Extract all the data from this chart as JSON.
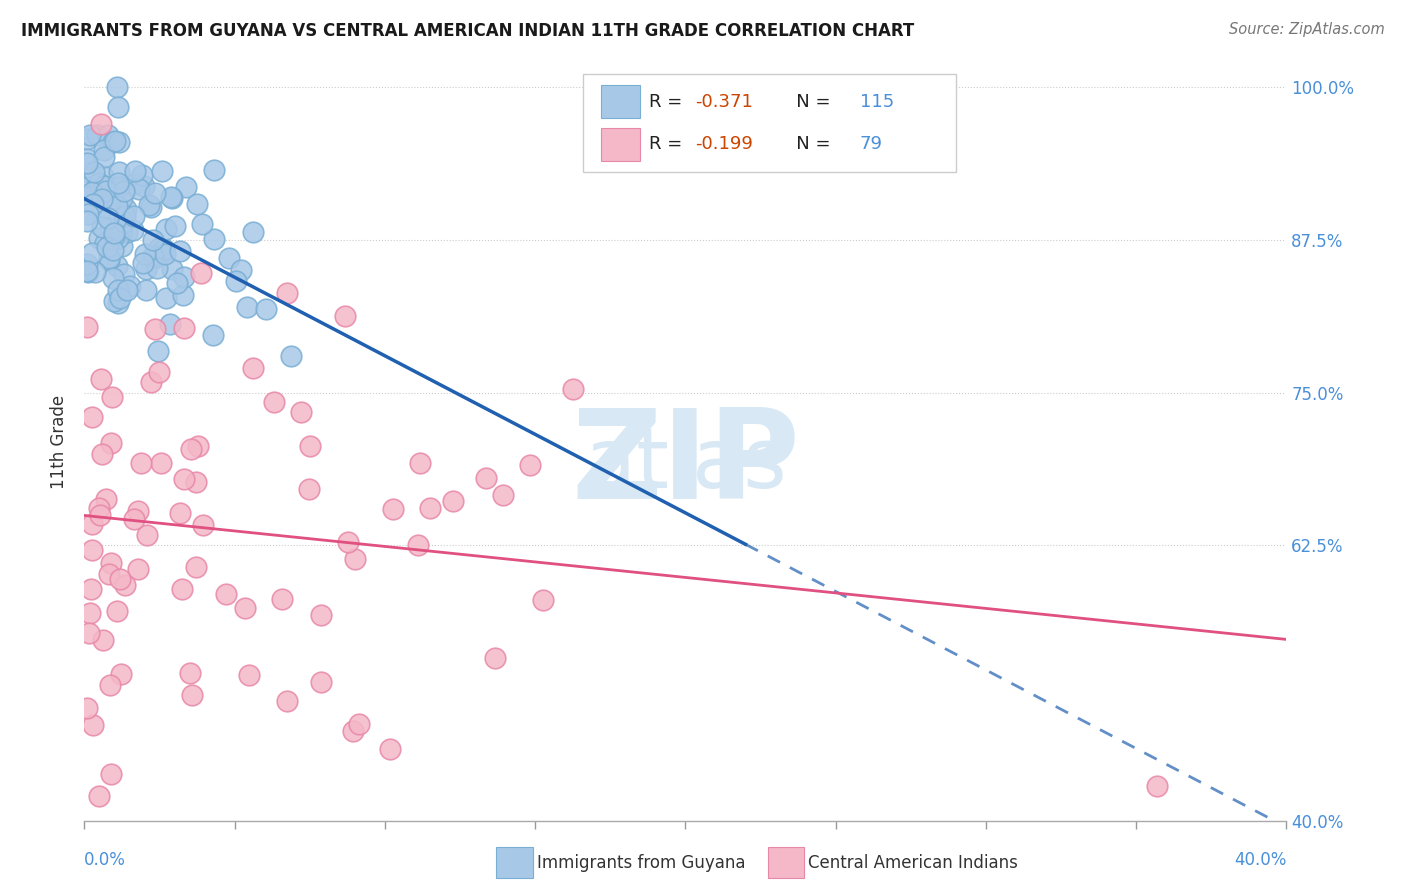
{
  "title": "IMMIGRANTS FROM GUYANA VS CENTRAL AMERICAN INDIAN 11TH GRADE CORRELATION CHART",
  "source": "Source: ZipAtlas.com",
  "ylabel": "11th Grade",
  "legend1_label": "Immigrants from Guyana",
  "legend2_label": "Central American Indians",
  "R1": -0.371,
  "N1": 115,
  "R2": -0.199,
  "N2": 79,
  "blue_color": "#a8c8e8",
  "blue_edge_color": "#7aafd4",
  "pink_color": "#f4b8c8",
  "pink_edge_color": "#e888a8",
  "blue_line_color": "#2060b0",
  "pink_line_color": "#e05080",
  "xmin": 0.0,
  "xmax": 0.4,
  "ymin": 0.4,
  "ymax": 1.02,
  "ytick_vals": [
    0.4,
    0.625,
    0.75,
    0.875,
    1.0
  ],
  "ytick_labels": [
    "40.0%",
    "62.5%",
    "75.0%",
    "87.5%",
    "100.0%"
  ],
  "right_label_color": "#4a90d9",
  "watermark_color": "#d8e8f4"
}
